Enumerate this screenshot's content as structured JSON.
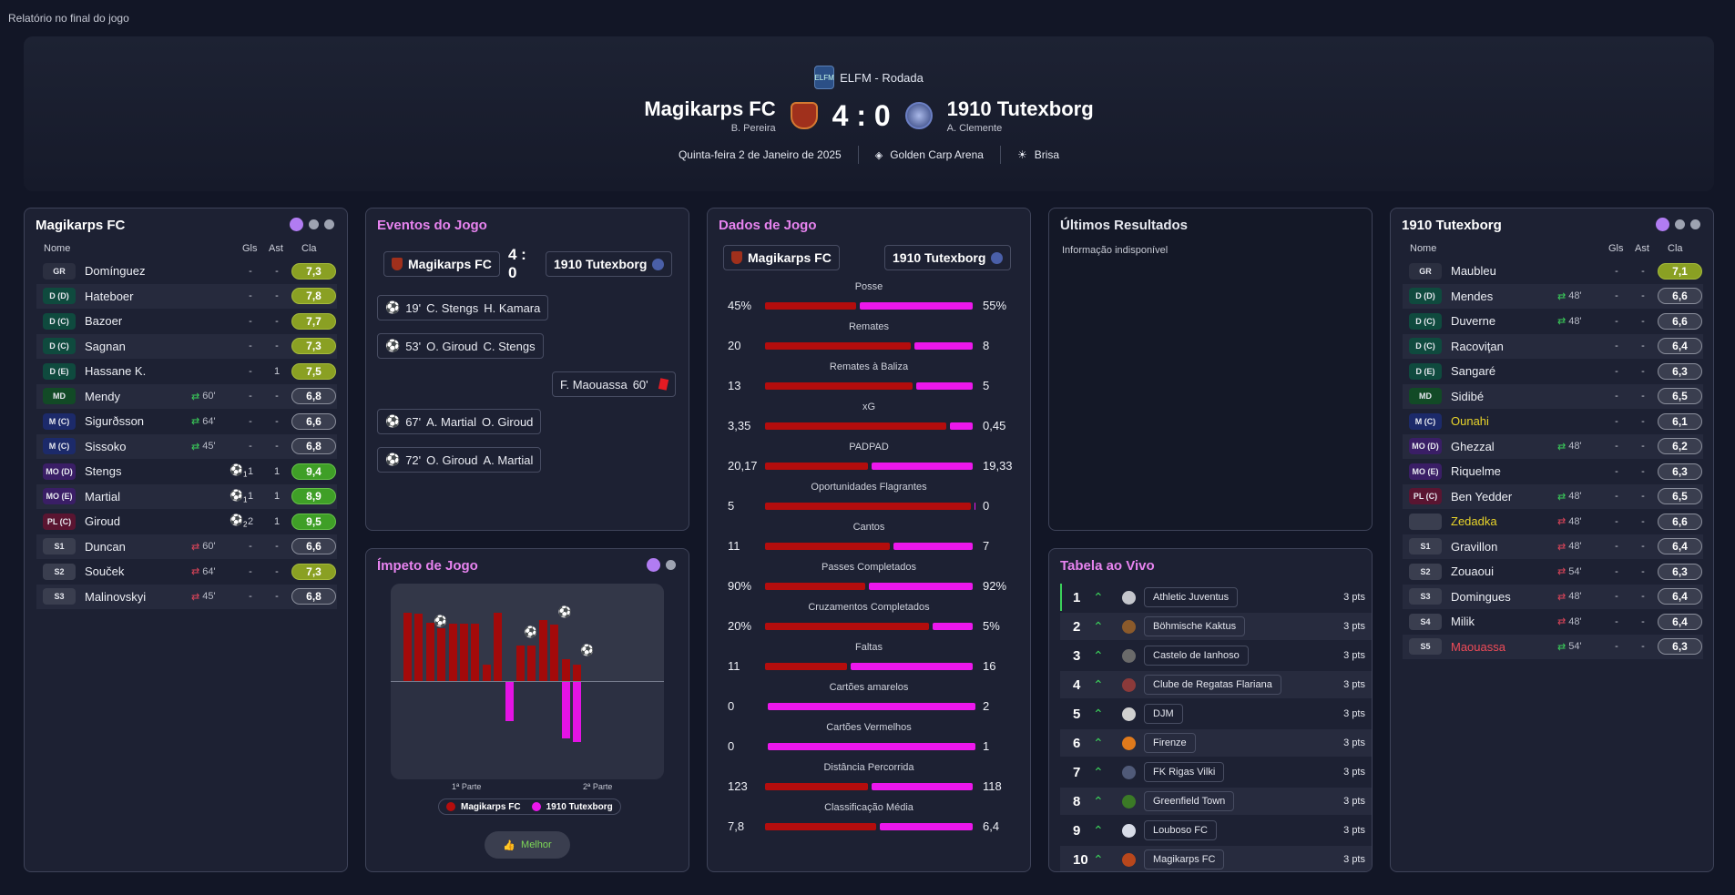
{
  "topbar": "Relatório no final do jogo",
  "match": {
    "competition": "ELFM - Rodada",
    "home": "Magikarps FC",
    "home_manager": "B. Pereira",
    "score": "4 : 0",
    "away": "1910 Tutexborg",
    "away_manager": "A. Clemente",
    "date": "Quinta-feira 2 de Janeiro de 2025",
    "stadium": "Golden Carp Arena",
    "weather": "Brisa"
  },
  "headers": {
    "name": "Nome",
    "gls": "Gls",
    "ast": "Ast",
    "cla": "Cla"
  },
  "home_panel": {
    "title": "Magikarps FC",
    "players": [
      {
        "pos": "GR",
        "name": "Domínguez",
        "sub": "",
        "g": "-",
        "a": "-",
        "r": "7,3",
        "rc": "yg",
        "pc": "#2b2f40"
      },
      {
        "pos": "D (D)",
        "name": "Hateboer",
        "sub": "",
        "g": "-",
        "a": "-",
        "r": "7,8",
        "rc": "yg",
        "pc": "#0f4a3e"
      },
      {
        "pos": "D (C)",
        "name": "Bazoer",
        "sub": "",
        "g": "-",
        "a": "-",
        "r": "7,7",
        "rc": "yg",
        "pc": "#0f4a3e"
      },
      {
        "pos": "D (C)",
        "name": "Sagnan",
        "sub": "",
        "g": "-",
        "a": "-",
        "r": "7,3",
        "rc": "yg",
        "pc": "#0f4a3e"
      },
      {
        "pos": "D (E)",
        "name": "Hassane K.",
        "sub": "",
        "g": "-",
        "a": "1",
        "r": "7,5",
        "rc": "yg",
        "pc": "#0f4a3e"
      },
      {
        "pos": "MD",
        "name": "Mendy",
        "sub": "60'",
        "g": "-",
        "a": "-",
        "r": "6,8",
        "rc": "",
        "pc": "#124a26",
        "subt": "out"
      },
      {
        "pos": "M (C)",
        "name": "Sigurðsson",
        "sub": "64'",
        "g": "-",
        "a": "-",
        "r": "6,6",
        "rc": "",
        "pc": "#1c2a6a",
        "subt": "out"
      },
      {
        "pos": "M (C)",
        "name": "Sissoko",
        "sub": "45'",
        "g": "-",
        "a": "-",
        "r": "6,8",
        "rc": "",
        "pc": "#1c2a6a",
        "subt": "out"
      },
      {
        "pos": "MO (D)",
        "name": "Stengs",
        "sub": "",
        "g": "1",
        "a": "1",
        "r": "9,4",
        "rc": "g",
        "pc": "#3a1e66",
        "ball": "1"
      },
      {
        "pos": "MO (E)",
        "name": "Martial",
        "sub": "",
        "g": "1",
        "a": "1",
        "r": "8,9",
        "rc": "g",
        "pc": "#3a1e66",
        "ball": "1"
      },
      {
        "pos": "PL (C)",
        "name": "Giroud",
        "sub": "",
        "g": "2",
        "a": "1",
        "r": "9,5",
        "rc": "g",
        "pc": "#5a1531",
        "ball": "2"
      },
      {
        "pos": "S1",
        "name": "Duncan",
        "sub": "60'",
        "g": "-",
        "a": "-",
        "r": "6,6",
        "rc": "",
        "pc": "#3a3e4f",
        "subt": "in"
      },
      {
        "pos": "S2",
        "name": "Souček",
        "sub": "64'",
        "g": "-",
        "a": "-",
        "r": "7,3",
        "rc": "yg",
        "pc": "#3a3e4f",
        "subt": "in"
      },
      {
        "pos": "S3",
        "name": "Malinovskyi",
        "sub": "45'",
        "g": "-",
        "a": "-",
        "r": "6,8",
        "rc": "",
        "pc": "#3a3e4f",
        "subt": "in"
      }
    ]
  },
  "away_panel": {
    "title": "1910 Tutexborg",
    "players": [
      {
        "pos": "GR",
        "name": "Maubleu",
        "sub": "",
        "g": "-",
        "a": "-",
        "r": "7,1",
        "rc": "yg",
        "pc": "#2b2f40"
      },
      {
        "pos": "D (D)",
        "name": "Mendes",
        "sub": "48'",
        "g": "-",
        "a": "-",
        "r": "6,6",
        "rc": "",
        "pc": "#0f4a3e",
        "subt": "out"
      },
      {
        "pos": "D (C)",
        "name": "Duverne",
        "sub": "48'",
        "g": "-",
        "a": "-",
        "r": "6,6",
        "rc": "",
        "pc": "#0f4a3e",
        "subt": "out"
      },
      {
        "pos": "D (C)",
        "name": "Racoviţan",
        "sub": "",
        "g": "-",
        "a": "-",
        "r": "6,4",
        "rc": "",
        "pc": "#0f4a3e"
      },
      {
        "pos": "D (E)",
        "name": "Sangaré",
        "sub": "",
        "g": "-",
        "a": "-",
        "r": "6,3",
        "rc": "",
        "pc": "#0f4a3e"
      },
      {
        "pos": "MD",
        "name": "Sidibé",
        "sub": "",
        "g": "-",
        "a": "-",
        "r": "6,5",
        "rc": "",
        "pc": "#124a26"
      },
      {
        "pos": "M (C)",
        "name": "Ounahi",
        "sub": "",
        "g": "-",
        "a": "-",
        "r": "6,1",
        "rc": "",
        "pc": "#1c2a6a",
        "col": "#e8d42a"
      },
      {
        "pos": "MO (D)",
        "name": "Ghezzal",
        "sub": "48'",
        "g": "-",
        "a": "-",
        "r": "6,2",
        "rc": "",
        "pc": "#3a1e66",
        "subt": "out"
      },
      {
        "pos": "MO (E)",
        "name": "Riquelme",
        "sub": "",
        "g": "-",
        "a": "-",
        "r": "6,3",
        "rc": "",
        "pc": "#3a1e66"
      },
      {
        "pos": "PL (C)",
        "name": "Ben Yedder",
        "sub": "48'",
        "g": "-",
        "a": "-",
        "r": "6,5",
        "rc": "",
        "pc": "#5a1531",
        "subt": "out"
      },
      {
        "pos": "",
        "name": "Zedadka",
        "sub": "48'",
        "g": "-",
        "a": "-",
        "r": "6,6",
        "rc": "",
        "pc": "#3a3e4f",
        "subt": "in",
        "col": "#e8d42a"
      },
      {
        "pos": "S1",
        "name": "Gravillon",
        "sub": "48'",
        "g": "-",
        "a": "-",
        "r": "6,4",
        "rc": "",
        "pc": "#3a3e4f",
        "subt": "in"
      },
      {
        "pos": "S2",
        "name": "Zouaoui",
        "sub": "54'",
        "g": "-",
        "a": "-",
        "r": "6,3",
        "rc": "",
        "pc": "#3a3e4f",
        "subt": "in"
      },
      {
        "pos": "S3",
        "name": "Domingues",
        "sub": "48'",
        "g": "-",
        "a": "-",
        "r": "6,4",
        "rc": "",
        "pc": "#3a3e4f",
        "subt": "in"
      },
      {
        "pos": "S4",
        "name": "Milik",
        "sub": "48'",
        "g": "-",
        "a": "-",
        "r": "6,4",
        "rc": "",
        "pc": "#3a3e4f",
        "subt": "in"
      },
      {
        "pos": "S5",
        "name": "Maouassa",
        "sub": "54'",
        "g": "-",
        "a": "-",
        "r": "6,3",
        "rc": "",
        "pc": "#3a3e4f",
        "subt": "out",
        "col": "#ef4b58"
      }
    ]
  },
  "events": {
    "title": "Eventos do Jogo",
    "home": "Magikarps FC",
    "score_top": "4 :",
    "score_bottom": "0",
    "away": "1910 Tutexborg",
    "items": [
      {
        "side": "home",
        "min": "19'",
        "scorer": "C. Stengs",
        "assist": "H. Kamara"
      },
      {
        "side": "home",
        "min": "53'",
        "scorer": "O. Giroud",
        "assist": "C. Stengs"
      },
      {
        "side": "away",
        "min": "60'",
        "scorer": "F. Maouassa",
        "assist": ""
      },
      {
        "side": "home",
        "min": "67'",
        "scorer": "A. Martial",
        "assist": "O. Giroud"
      },
      {
        "side": "home",
        "min": "72'",
        "scorer": "O. Giroud",
        "assist": "A. Martial"
      }
    ]
  },
  "momentum": {
    "title": "Ímpeto de Jogo",
    "first_half": "1ª Parte",
    "second_half": "2ª Parte",
    "legend_home": "Magikarps FC",
    "legend_away": "1910 Tutexborg",
    "better": "Melhor",
    "home_bars": [
      0.94,
      0.92,
      0.8,
      0.73,
      0.79,
      0.79,
      0.79,
      0.22,
      0.94,
      0.0,
      0.49,
      0.49,
      0.84,
      0.77,
      0.3,
      0.22
    ],
    "away_bars": [
      0,
      0,
      0,
      0,
      0,
      0,
      0,
      0,
      0,
      0.54,
      0,
      0,
      0,
      0,
      0.77,
      0.83
    ]
  },
  "stats": {
    "title": "Dados de Jogo",
    "home": "Magikarps FC",
    "away": "1910 Tutexborg",
    "rows": [
      {
        "label": "Posse",
        "l": "45%",
        "r": "55%",
        "lv": 45,
        "rv": 55
      },
      {
        "label": "Remates",
        "l": "20",
        "r": "8",
        "lv": 20,
        "rv": 8
      },
      {
        "label": "Remates à Baliza",
        "l": "13",
        "r": "5",
        "lv": 13,
        "rv": 5
      },
      {
        "label": "xG",
        "l": "3,35",
        "r": "0,45",
        "lv": 3.35,
        "rv": 0.45
      },
      {
        "label": "PADPAD",
        "l": "20,17",
        "r": "19,33",
        "lv": 20.17,
        "rv": 19.33
      },
      {
        "label": "Oportunidades Flagrantes",
        "l": "5",
        "r": "0",
        "lv": 5,
        "rv": 0
      },
      {
        "label": "Cantos",
        "l": "11",
        "r": "7",
        "lv": 11,
        "rv": 7
      },
      {
        "label": "Passes Completados",
        "l": "90%",
        "r": "92%",
        "lv": 90,
        "rv": 92
      },
      {
        "label": "Cruzamentos Completados",
        "l": "20%",
        "r": "5%",
        "lv": 20,
        "rv": 5
      },
      {
        "label": "Faltas",
        "l": "11",
        "r": "16",
        "lv": 11,
        "rv": 16
      },
      {
        "label": "Cartões amarelos",
        "l": "0",
        "r": "2",
        "lv": 0,
        "rv": 2
      },
      {
        "label": "Cartões Vermelhos",
        "l": "0",
        "r": "1",
        "lv": 0,
        "rv": 1
      },
      {
        "label": "Distância Percorrida",
        "l": "123",
        "r": "118",
        "lv": 123,
        "rv": 118
      },
      {
        "label": "Classificação Média",
        "l": "7,8",
        "r": "6,4",
        "lv": 7.8,
        "rv": 6.4
      }
    ]
  },
  "last_results": {
    "title": "Últimos Resultados",
    "info": "Informação indisponível"
  },
  "table": {
    "title": "Tabela ao Vivo",
    "rows": [
      {
        "pos": "1",
        "club": "Athletic Juventus",
        "pts": "3 pts",
        "c": "#c4c6cc"
      },
      {
        "pos": "2",
        "club": "Böhmische Kaktus",
        "pts": "3 pts",
        "c": "#8b5a2b"
      },
      {
        "pos": "3",
        "club": "Castelo de Ianhoso",
        "pts": "3 pts",
        "c": "#6a6a6a"
      },
      {
        "pos": "4",
        "club": "Clube de Regatas Flariana",
        "pts": "3 pts",
        "c": "#8b3a3a"
      },
      {
        "pos": "5",
        "club": "DJM",
        "pts": "3 pts",
        "c": "#d0d0d0"
      },
      {
        "pos": "6",
        "club": "Firenze",
        "pts": "3 pts",
        "c": "#e07a1c"
      },
      {
        "pos": "7",
        "club": "FK Rigas Vilki",
        "pts": "3 pts",
        "c": "#505a78"
      },
      {
        "pos": "8",
        "club": "Greenfield Town",
        "pts": "3 pts",
        "c": "#3b7a26"
      },
      {
        "pos": "9",
        "club": "Louboso FC",
        "pts": "3 pts",
        "c": "#d8dce8"
      },
      {
        "pos": "10",
        "club": "Magikarps FC",
        "pts": "3 pts",
        "c": "#b8471c"
      }
    ]
  }
}
